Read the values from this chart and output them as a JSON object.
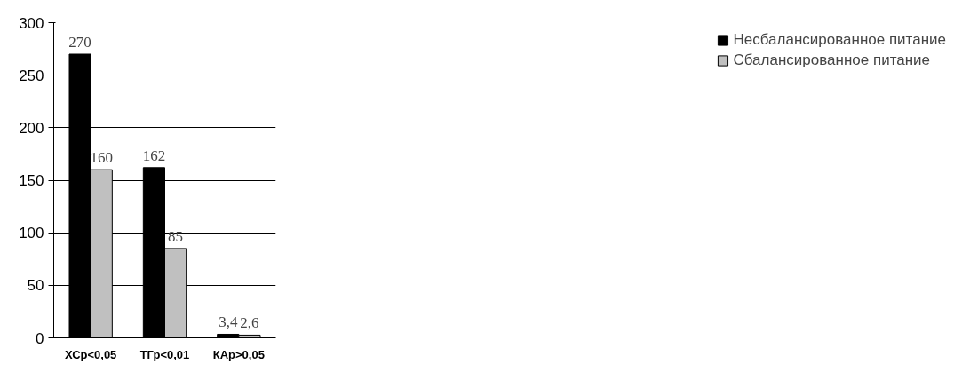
{
  "chart_data": {
    "type": "bar",
    "categories": [
      "ХСр<0,05",
      "ТГр<0,01",
      "КАр>0,05"
    ],
    "series": [
      {
        "name": "Несбалансированное питание",
        "color": "#000000",
        "values": [
          270,
          162,
          3.4
        ],
        "value_labels": [
          "270",
          "162",
          "3,4"
        ]
      },
      {
        "name": "Сбалансированное питание",
        "color": "#c0c0c0",
        "values": [
          160,
          85,
          2.6
        ],
        "value_labels": [
          "160",
          "85",
          "2,6"
        ]
      }
    ],
    "ylim": [
      0,
      300
    ],
    "yticks": [
      0,
      50,
      100,
      150,
      200,
      250,
      300
    ],
    "grid": "y",
    "legend": "right"
  }
}
